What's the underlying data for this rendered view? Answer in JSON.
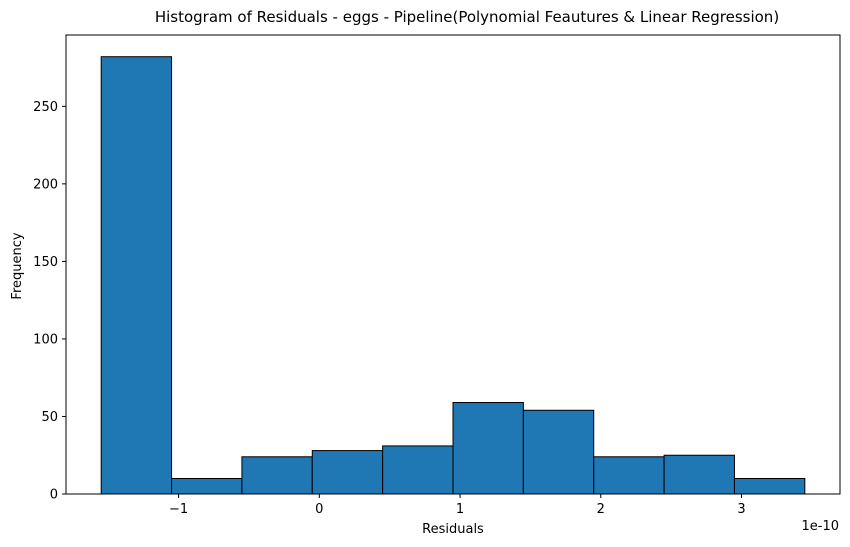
{
  "chart_data": {
    "type": "bar",
    "title": "Histogram of Residuals - eggs  - Pipeline(Polynomial Feautures & Linear Regression)",
    "xlabel": "Residuals",
    "ylabel": "Frequency",
    "x_offset_text": "1e-10",
    "bin_edges": [
      -1.55,
      -1.05,
      -0.55,
      -0.05,
      0.45,
      0.95,
      1.45,
      1.95,
      2.45,
      2.95,
      3.45
    ],
    "values": [
      282,
      10,
      24,
      28,
      31,
      59,
      54,
      24,
      25,
      10
    ],
    "xlim": [
      -1.8,
      3.7
    ],
    "ylim": [
      0,
      296
    ],
    "x_ticks": [
      -1,
      0,
      1,
      2,
      3
    ],
    "x_tick_labels": [
      "−1",
      "0",
      "1",
      "2",
      "3"
    ],
    "y_ticks": [
      0,
      50,
      100,
      150,
      200,
      250
    ],
    "y_tick_labels": [
      "0",
      "50",
      "100",
      "150",
      "200",
      "250"
    ],
    "bar_color": "#1f77b4",
    "edge_color": "#000000",
    "grid": false,
    "legend": "none"
  }
}
